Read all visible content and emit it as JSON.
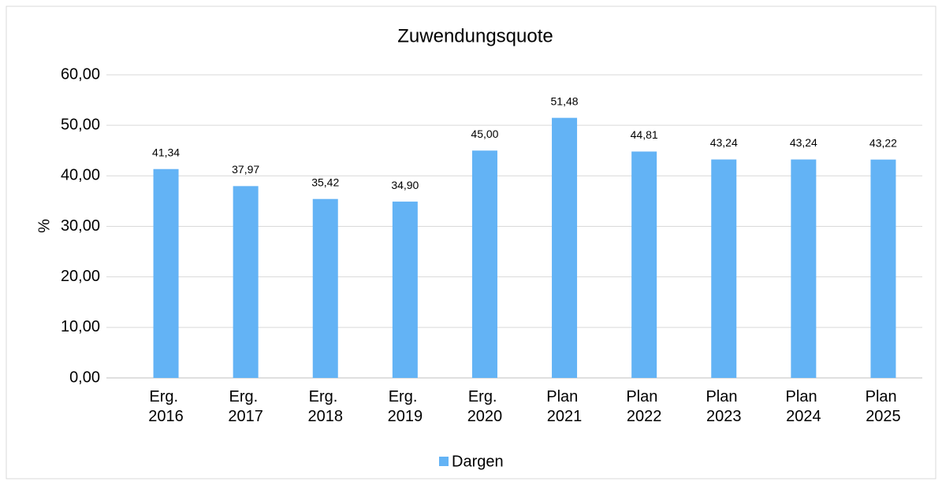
{
  "chart_data": {
    "type": "bar",
    "title": "Zuwendungsquote",
    "y_label": "%",
    "categories": [
      "Erg. 2016",
      "Erg. 2017",
      "Erg. 2018",
      "Erg. 2019",
      "Erg. 2020",
      "Plan 2021",
      "Plan 2022",
      "Plan 2023",
      "Plan 2024",
      "Plan 2025"
    ],
    "series": [
      {
        "name": "Dargen",
        "color": "#63b3f5",
        "values": [
          41.34,
          37.97,
          35.42,
          34.9,
          45.0,
          51.48,
          44.81,
          43.24,
          43.24,
          43.22
        ],
        "value_labels": [
          "41,34",
          "37,97",
          "35,42",
          "34,90",
          "45,00",
          "51,48",
          "44,81",
          "43,24",
          "43,24",
          "43,22"
        ]
      }
    ],
    "ylim": [
      0,
      60
    ],
    "yticks": [
      {
        "value": 0,
        "label": "0,00"
      },
      {
        "value": 10,
        "label": "10,00"
      },
      {
        "value": 20,
        "label": "20,00"
      },
      {
        "value": 30,
        "label": "30,00"
      },
      {
        "value": 40,
        "label": "40,00"
      },
      {
        "value": 50,
        "label": "50,00"
      },
      {
        "value": 60,
        "label": "60,00"
      }
    ],
    "grid": true,
    "legend": "bottom"
  }
}
